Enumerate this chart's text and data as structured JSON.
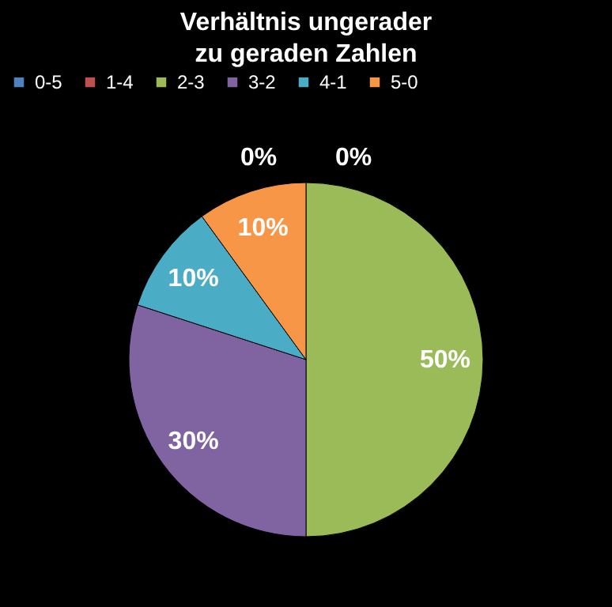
{
  "chart_data": {
    "type": "pie",
    "title": "Verhältnis ungerader zu geraden Zahlen",
    "categories": [
      "0-5",
      "1-4",
      "2-3",
      "3-2",
      "4-1",
      "5-0"
    ],
    "values": [
      0,
      0,
      50,
      30,
      10,
      10
    ],
    "colors": [
      "#4f81bd",
      "#c0504d",
      "#9bbb59",
      "#8064a2",
      "#4bacc6",
      "#f79646"
    ],
    "value_labels": [
      "0%",
      "0%",
      "50%",
      "30%",
      "10%",
      "10%"
    ],
    "legend": "top"
  }
}
